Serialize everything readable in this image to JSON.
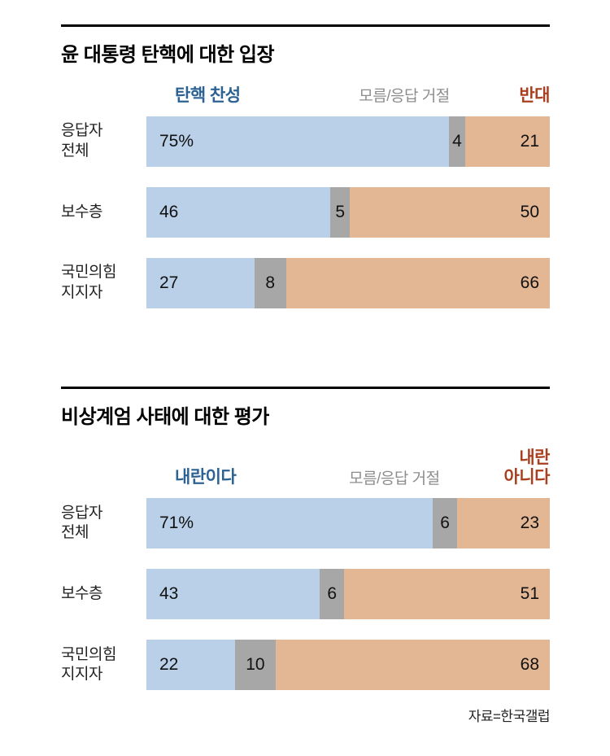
{
  "page": {
    "source_note": "자료=한국갤럽"
  },
  "colors": {
    "bar_blue": "#b9d0e8",
    "bar_gray": "#a7a7a7",
    "bar_tan": "#e3b694",
    "legend_blue": "#2d6394",
    "legend_gray": "#8d8d8d",
    "legend_red": "#a8401f",
    "value_text": "#111111"
  },
  "chart_data": [
    {
      "type": "bar",
      "orientation": "horizontal-stacked",
      "title": "윤 대통령 탄핵에 대한 입장",
      "legend": [
        {
          "label": "탄핵 찬성",
          "role": "support"
        },
        {
          "label": "모름/응답 거절",
          "role": "unknown"
        },
        {
          "label": "반대",
          "role": "oppose"
        }
      ],
      "categories": [
        "응답자\n전체",
        "보수층",
        "국민의힘\n지지자"
      ],
      "series": [
        {
          "name": "탄핵 찬성",
          "role": "support",
          "values": [
            75,
            46,
            27
          ],
          "labels": [
            "75%",
            "46",
            "27"
          ]
        },
        {
          "name": "모름/응답 거절",
          "role": "unknown",
          "values": [
            4,
            5,
            8
          ],
          "labels": [
            "4",
            "5",
            "8"
          ]
        },
        {
          "name": "반대",
          "role": "oppose",
          "values": [
            21,
            50,
            66
          ],
          "labels": [
            "21",
            "50",
            "66"
          ]
        }
      ]
    },
    {
      "type": "bar",
      "orientation": "horizontal-stacked",
      "title": "비상계엄 사태에 대한 평가",
      "legend": [
        {
          "label": "내란이다",
          "role": "support"
        },
        {
          "label": "모름/응답 거절",
          "role": "unknown"
        },
        {
          "label": "내란\n아니다",
          "role": "oppose"
        }
      ],
      "categories": [
        "응답자\n전체",
        "보수층",
        "국민의힘\n지지자"
      ],
      "series": [
        {
          "name": "내란이다",
          "role": "support",
          "values": [
            71,
            43,
            22
          ],
          "labels": [
            "71%",
            "43",
            "22"
          ]
        },
        {
          "name": "모름/응답 거절",
          "role": "unknown",
          "values": [
            6,
            6,
            10
          ],
          "labels": [
            "6",
            "6",
            "10"
          ]
        },
        {
          "name": "내란 아니다",
          "role": "oppose",
          "values": [
            23,
            51,
            68
          ],
          "labels": [
            "23",
            "51",
            "68"
          ]
        }
      ]
    }
  ]
}
